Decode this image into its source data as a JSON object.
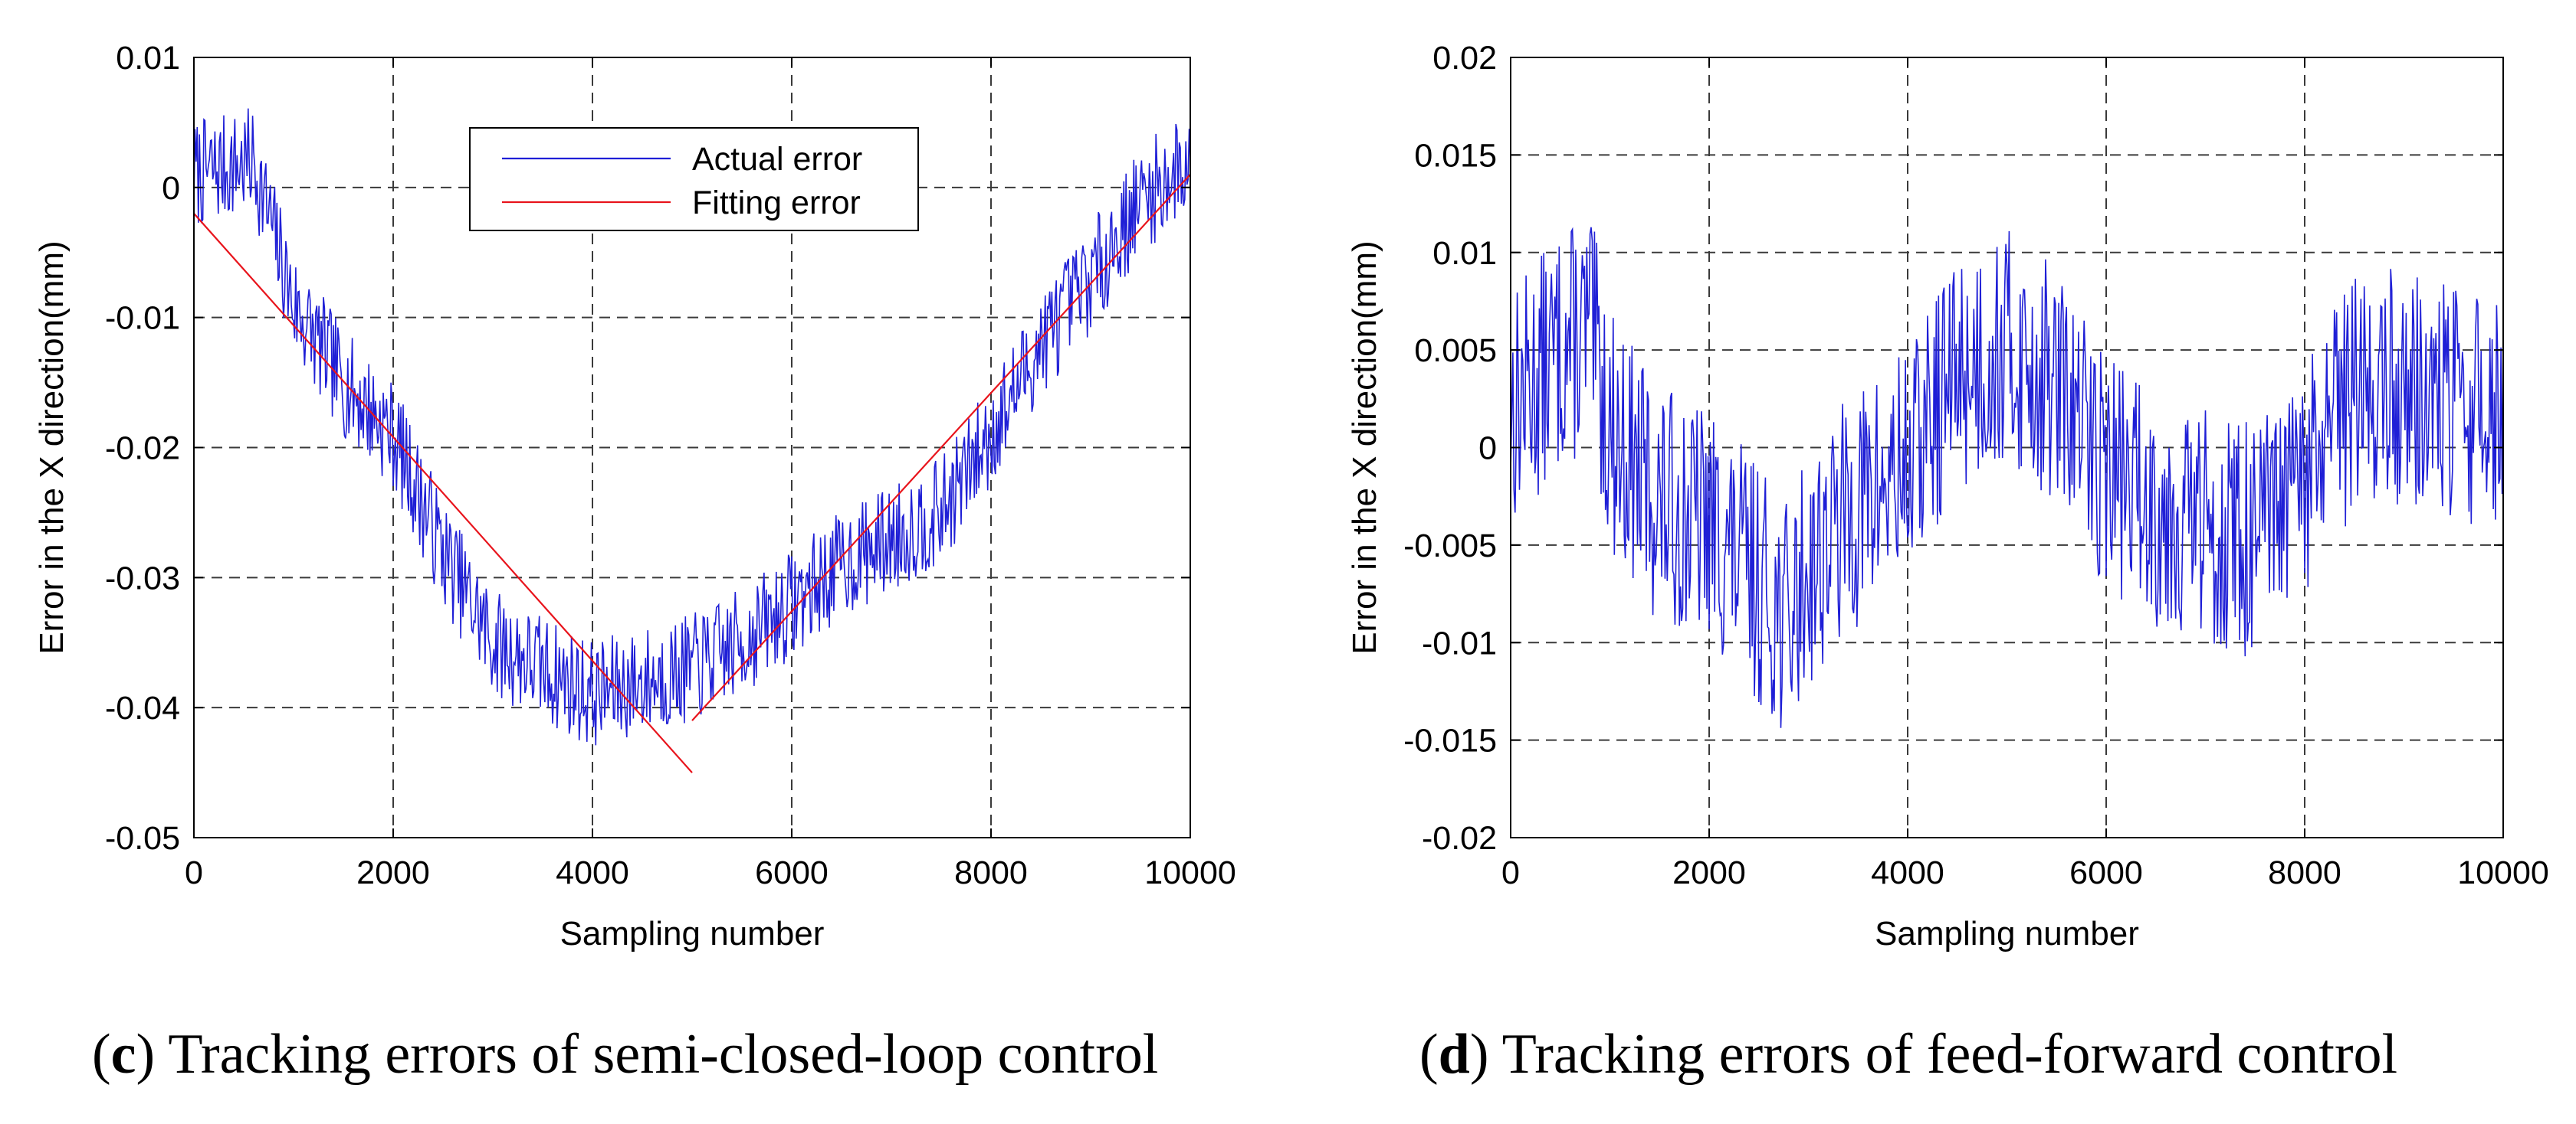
{
  "chart_data": [
    {
      "type": "line",
      "panel": "c",
      "title": "",
      "xlabel": "Sampling number",
      "ylabel": "Error in the X direction(mm)",
      "xlim": [
        0,
        10000
      ],
      "ylim": [
        -0.05,
        0.01
      ],
      "xticks": [
        0,
        2000,
        4000,
        6000,
        8000,
        10000
      ],
      "xtick_labels": [
        "0",
        "2000",
        "4000",
        "6000",
        "8000",
        "10000"
      ],
      "yticks": [
        0.01,
        0,
        -0.01,
        -0.02,
        -0.03,
        -0.04,
        -0.05
      ],
      "ytick_labels": [
        "0.01",
        "0",
        "-0.01",
        "-0.02",
        "-0.03",
        "-0.04",
        "-0.05"
      ],
      "grid": true,
      "legend": {
        "position": "top-center",
        "entries": [
          "Actual error",
          "Fitting error"
        ]
      },
      "caption_label": "c",
      "caption_text": ") Tracking errors of semi-closed-loop control",
      "caption_prefix": "(",
      "series": [
        {
          "name": "Actual error",
          "color": "#1f1fd6",
          "style": "noisy",
          "seed": 7,
          "points": 900,
          "noise": 0.0042,
          "trend_x": [
            0,
            600,
            1000,
            1500,
            2000,
            2500,
            3000,
            3500,
            4000,
            4500,
            5000,
            5500,
            6000,
            6500,
            7000,
            7500,
            8000,
            8500,
            9000,
            9500,
            10000
          ],
          "trend_y": [
            0.001,
            0.002,
            -0.009,
            -0.015,
            -0.019,
            -0.028,
            -0.035,
            -0.037,
            -0.039,
            -0.038,
            -0.037,
            -0.035,
            -0.032,
            -0.029,
            -0.027,
            -0.025,
            -0.019,
            -0.012,
            -0.007,
            -0.001,
            0.002
          ]
        },
        {
          "name": "Fitting error",
          "color": "#e8141c",
          "style": "line",
          "segments": [
            {
              "x": [
                0,
                5000
              ],
              "y": [
                -0.002,
                -0.045
              ]
            },
            {
              "x": [
                5000,
                10000
              ],
              "y": [
                -0.041,
                0.001
              ]
            }
          ]
        }
      ]
    },
    {
      "type": "line",
      "panel": "d",
      "title": "",
      "xlabel": "Sampling number",
      "ylabel": "Error in the X direction(mm)",
      "xlim": [
        0,
        10000
      ],
      "ylim": [
        -0.02,
        0.02
      ],
      "xticks": [
        0,
        2000,
        4000,
        6000,
        8000,
        10000
      ],
      "xtick_labels": [
        "0",
        "2000",
        "4000",
        "6000",
        "8000",
        "10000"
      ],
      "yticks": [
        0.02,
        0.015,
        0.01,
        0.005,
        0,
        -0.005,
        -0.01,
        -0.015,
        -0.02
      ],
      "ytick_labels": [
        "0.02",
        "0.015",
        "0.01",
        "0.005",
        "0",
        "-0.005",
        "-0.01",
        "-0.015",
        "-0.02"
      ],
      "grid": true,
      "caption_label": "d",
      "caption_text": ") Tracking errors of feed-forward control",
      "caption_prefix": "(",
      "series": [
        {
          "name": "Actual error",
          "color": "#1f1fd6",
          "style": "noisy",
          "seed": 13,
          "points": 900,
          "noise": 0.0062,
          "trend_x": [
            0,
            500,
            800,
            1000,
            1500,
            2000,
            2500,
            2800,
            3000,
            3500,
            4000,
            4500,
            5000,
            5500,
            6000,
            6500,
            7000,
            7500,
            8000,
            8500,
            9000,
            9500,
            10000
          ],
          "trend_y": [
            0.002,
            0.005,
            0.006,
            0.001,
            -0.003,
            -0.004,
            -0.007,
            -0.009,
            -0.006,
            -0.003,
            -0.001,
            0.004,
            0.005,
            0.003,
            -0.001,
            -0.003,
            -0.004,
            -0.005,
            -0.002,
            0.003,
            0.003,
            0.002,
            0.002
          ]
        }
      ]
    }
  ]
}
